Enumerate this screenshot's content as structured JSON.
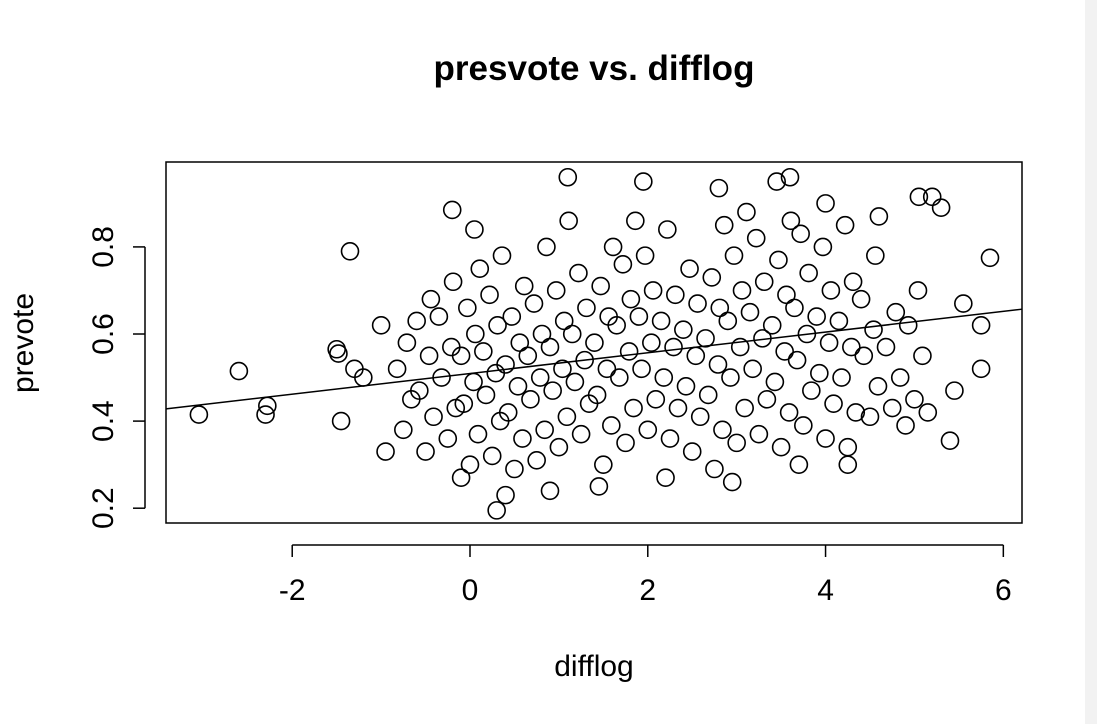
{
  "chart_data": {
    "type": "scatter",
    "title": "presvote vs. difflog",
    "x_label": "difflog",
    "y_label": "prevote",
    "xlim": [
      -3.42,
      6.21
    ],
    "ylim": [
      0.166,
      0.995
    ],
    "xticks": [
      -2,
      0,
      2,
      4,
      6
    ],
    "yticks": [
      0.2,
      0.4,
      0.6,
      0.8
    ],
    "color": "#000000",
    "x": [
      -0.75,
      -0.66,
      -0.82,
      -0.71,
      -0.5,
      -0.41,
      -0.57,
      -0.46,
      -0.6,
      -0.44,
      -0.25,
      -0.16,
      -0.32,
      -0.21,
      -0.35,
      -0.19,
      0,
      0.09,
      -0.07,
      0.04,
      -0.1,
      0.06,
      -0.03,
      0.11,
      0.25,
      0.34,
      0.18,
      0.29,
      0.15,
      0.31,
      0.22,
      0.36,
      0.5,
      0.59,
      0.43,
      0.54,
      0.4,
      0.56,
      0.47,
      0.61,
      0.75,
      0.84,
      0.68,
      0.79,
      0.65,
      0.81,
      0.72,
      0.86,
      1,
      1.09,
      0.93,
      1.04,
      0.9,
      1.06,
      0.97,
      1.11,
      1.25,
      1.34,
      1.18,
      1.29,
      1.15,
      1.31,
      1.22,
      1.5,
      1.59,
      1.43,
      1.54,
      1.4,
      1.56,
      1.47,
      1.61,
      1.75,
      1.84,
      1.68,
      1.79,
      1.65,
      1.81,
      1.72,
      1.86,
      2,
      2.09,
      1.93,
      2.04,
      1.9,
      2.06,
      1.97,
      2.25,
      2.34,
      2.18,
      2.29,
      2.15,
      2.31,
      2.22,
      2.5,
      2.59,
      2.43,
      2.54,
      2.4,
      2.56,
      2.47,
      2.75,
      2.84,
      2.68,
      2.79,
      2.65,
      2.81,
      2.72,
      2.86,
      3,
      3.09,
      2.93,
      3.04,
      2.9,
      3.06,
      2.97,
      3.11,
      3.25,
      3.34,
      3.18,
      3.29,
      3.15,
      3.31,
      3.22,
      3.5,
      3.59,
      3.43,
      3.54,
      3.4,
      3.56,
      3.47,
      3.61,
      3.75,
      3.84,
      3.68,
      3.79,
      3.65,
      3.81,
      3.72,
      4,
      4.09,
      3.93,
      4.04,
      3.9,
      4.06,
      3.97,
      4.25,
      4.34,
      4.18,
      4.29,
      4.15,
      4.31,
      4.22,
      4.5,
      4.59,
      4.43,
      4.54,
      4.4,
      4.56,
      4.75,
      4.84,
      4.68,
      4.79,
      5,
      5.09,
      4.93,
      5.04,
      -3.05,
      -2.6,
      -2.3,
      -2.28,
      -1.35,
      -1.5,
      -1.48,
      -1.45,
      -1.2,
      -1.3,
      -1.0,
      -0.95,
      -0.2,
      0.05,
      0.3,
      0.4,
      1.1,
      1.95,
      2.8,
      3.6,
      3.45,
      5.05,
      5.2,
      5.3,
      5.85,
      5.55,
      5.75,
      5.75,
      5.45,
      5.4,
      4.25,
      3.7,
      0.9,
      1.45,
      2.2,
      2.95,
      -0.1,
      4.9,
      5.15,
      4.6,
      4.0
    ],
    "values": [
      0.38,
      0.45,
      0.52,
      0.58,
      0.33,
      0.41,
      0.47,
      0.55,
      0.63,
      0.68,
      0.36,
      0.43,
      0.5,
      0.57,
      0.64,
      0.72,
      0.3,
      0.37,
      0.44,
      0.49,
      0.55,
      0.6,
      0.66,
      0.75,
      0.32,
      0.4,
      0.46,
      0.51,
      0.56,
      0.62,
      0.69,
      0.78,
      0.29,
      0.36,
      0.42,
      0.48,
      0.53,
      0.58,
      0.64,
      0.71,
      0.31,
      0.38,
      0.45,
      0.5,
      0.55,
      0.6,
      0.67,
      0.8,
      0.34,
      0.41,
      0.47,
      0.52,
      0.57,
      0.63,
      0.7,
      0.86,
      0.37,
      0.44,
      0.49,
      0.54,
      0.6,
      0.66,
      0.74,
      0.3,
      0.39,
      0.46,
      0.52,
      0.58,
      0.64,
      0.71,
      0.8,
      0.35,
      0.43,
      0.5,
      0.56,
      0.62,
      0.68,
      0.76,
      0.86,
      0.38,
      0.45,
      0.52,
      0.58,
      0.64,
      0.7,
      0.78,
      0.36,
      0.43,
      0.5,
      0.57,
      0.63,
      0.69,
      0.84,
      0.33,
      0.41,
      0.48,
      0.55,
      0.61,
      0.67,
      0.75,
      0.29,
      0.38,
      0.46,
      0.53,
      0.59,
      0.66,
      0.73,
      0.85,
      0.35,
      0.43,
      0.5,
      0.57,
      0.63,
      0.7,
      0.78,
      0.88,
      0.37,
      0.45,
      0.52,
      0.59,
      0.65,
      0.72,
      0.82,
      0.34,
      0.42,
      0.49,
      0.56,
      0.62,
      0.69,
      0.77,
      0.86,
      0.39,
      0.47,
      0.54,
      0.6,
      0.66,
      0.74,
      0.83,
      0.36,
      0.44,
      0.51,
      0.58,
      0.64,
      0.7,
      0.8,
      0.34,
      0.42,
      0.5,
      0.57,
      0.63,
      0.72,
      0.85,
      0.41,
      0.48,
      0.55,
      0.61,
      0.68,
      0.78,
      0.43,
      0.5,
      0.57,
      0.65,
      0.45,
      0.55,
      0.62,
      0.7,
      0.415,
      0.515,
      0.415,
      0.435,
      0.79,
      0.565,
      0.555,
      0.4,
      0.5,
      0.52,
      0.62,
      0.33,
      0.885,
      0.84,
      0.195,
      0.23,
      0.96,
      0.95,
      0.935,
      0.96,
      0.95,
      0.915,
      0.915,
      0.89,
      0.775,
      0.67,
      0.62,
      0.52,
      0.47,
      0.355,
      0.3,
      0.3,
      0.24,
      0.25,
      0.27,
      0.26,
      0.27,
      0.39,
      0.42,
      0.87,
      0.9
    ],
    "fit": {
      "x": [
        -3.42,
        6.21
      ],
      "values": [
        0.428,
        0.657
      ]
    }
  }
}
